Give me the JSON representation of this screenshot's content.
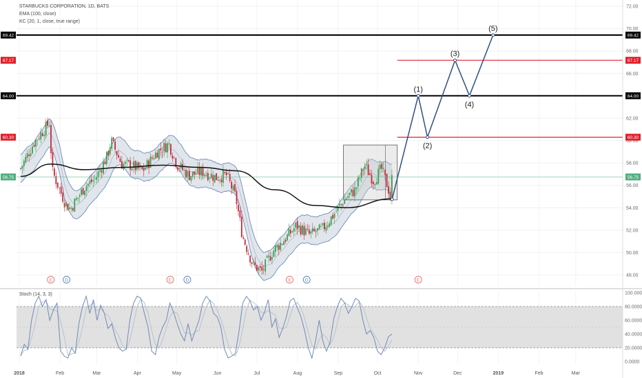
{
  "legend": {
    "symbol": "STARBUCKS CORPORATION, 1D, BATS",
    "ema": "EMA (100, close)",
    "kc": "KC (20, 1, close, true range)",
    "stoch": "Stoch (14, 3, 3)"
  },
  "colors": {
    "up": "#3c9d4e",
    "down": "#c2293a",
    "ema": "#111111",
    "kc_line": "#6f8ab8",
    "kc_fill": "#c9d2dd",
    "black_level": "#000000",
    "red_level": "#e0202a",
    "current_price": "#4fae7e",
    "stoch_k": "#6f8ab8",
    "stoch_d": "#b7c2cf",
    "stoch_band": "#d9d9d9",
    "event_e": "#e07070",
    "event_d": "#5b7fb0"
  },
  "chart_data": [
    {
      "type": "candlestick",
      "title": "STARBUCKS CORPORATION, 1D, BATS",
      "y_range": [
        47,
        72
      ],
      "y_ticks": [
        "48.00",
        "50.00",
        "52.00",
        "54.00",
        "56.00",
        "58.00",
        "60.00",
        "62.00",
        "64.00",
        "66.00",
        "68.00",
        "70.00",
        "72.00"
      ],
      "x_labels": [
        "2018",
        "Feb",
        "Mar",
        "Apr",
        "May",
        "Jun",
        "Jul",
        "Aug",
        "Sep",
        "Oct",
        "Nov",
        "Dec",
        "2019",
        "Feb",
        "Mar"
      ],
      "price_series": [
        {
          "date": "2018-01-02",
          "close": 57.5
        },
        {
          "date": "2018-01-12",
          "close": 59.8
        },
        {
          "date": "2018-01-24",
          "close": 61.6
        },
        {
          "date": "2018-01-26",
          "close": 57.3
        },
        {
          "date": "2018-02-05",
          "close": 54.4
        },
        {
          "date": "2018-02-09",
          "close": 53.9
        },
        {
          "date": "2018-02-20",
          "close": 55.9
        },
        {
          "date": "2018-02-28",
          "close": 56.6
        },
        {
          "date": "2018-03-09",
          "close": 58.6
        },
        {
          "date": "2018-03-12",
          "close": 60.0
        },
        {
          "date": "2018-03-20",
          "close": 57.9
        },
        {
          "date": "2018-03-27",
          "close": 57.8
        },
        {
          "date": "2018-04-05",
          "close": 57.3
        },
        {
          "date": "2018-04-16",
          "close": 59.0
        },
        {
          "date": "2018-04-25",
          "close": 59.7
        },
        {
          "date": "2018-05-01",
          "close": 57.9
        },
        {
          "date": "2018-05-10",
          "close": 56.9
        },
        {
          "date": "2018-05-21",
          "close": 57.2
        },
        {
          "date": "2018-05-31",
          "close": 56.7
        },
        {
          "date": "2018-06-08",
          "close": 56.9
        },
        {
          "date": "2018-06-15",
          "close": 54.9
        },
        {
          "date": "2018-06-20",
          "close": 51.5
        },
        {
          "date": "2018-06-28",
          "close": 48.9
        },
        {
          "date": "2018-07-05",
          "close": 48.3
        },
        {
          "date": "2018-07-13",
          "close": 50.1
        },
        {
          "date": "2018-07-24",
          "close": 51.4
        },
        {
          "date": "2018-07-31",
          "close": 52.4
        },
        {
          "date": "2018-08-10",
          "close": 51.6
        },
        {
          "date": "2018-08-20",
          "close": 52.1
        },
        {
          "date": "2018-08-28",
          "close": 53.3
        },
        {
          "date": "2018-09-07",
          "close": 54.9
        },
        {
          "date": "2018-09-14",
          "close": 55.6
        },
        {
          "date": "2018-09-21",
          "close": 57.8
        },
        {
          "date": "2018-09-28",
          "close": 56.4
        },
        {
          "date": "2018-10-04",
          "close": 57.5
        },
        {
          "date": "2018-10-09",
          "close": 55.8
        },
        {
          "date": "2018-10-11",
          "close": 54.7
        },
        {
          "date": "2018-10-12",
          "close": 56.8
        }
      ],
      "ema_100": [
        {
          "date": "2018-01-02",
          "value": 56.8
        },
        {
          "date": "2018-01-25",
          "value": 57.9
        },
        {
          "date": "2018-02-20",
          "value": 57.4
        },
        {
          "date": "2018-03-20",
          "value": 57.6
        },
        {
          "date": "2018-04-20",
          "value": 57.8
        },
        {
          "date": "2018-05-20",
          "value": 57.6
        },
        {
          "date": "2018-06-15",
          "value": 57.3
        },
        {
          "date": "2018-07-15",
          "value": 55.6
        },
        {
          "date": "2018-08-15",
          "value": 54.2
        },
        {
          "date": "2018-09-07",
          "value": 54.0
        },
        {
          "date": "2018-10-12",
          "value": 54.8
        }
      ],
      "levels": [
        {
          "name": "level-69-42",
          "value": 69.42,
          "label": "69.42",
          "color": "#000000",
          "style": "thick"
        },
        {
          "name": "level-67-17",
          "value": 67.17,
          "label": "67.17",
          "color": "#e0202a",
          "style": "thin"
        },
        {
          "name": "level-64-00",
          "value": 64.0,
          "label": "64.00",
          "color": "#000000",
          "style": "thick"
        },
        {
          "name": "level-60-30",
          "value": 60.3,
          "label": "60.30",
          "color": "#e0202a",
          "style": "thin"
        }
      ],
      "current_price": {
        "value": 56.75,
        "label": "56.75"
      },
      "elliott_wave": [
        {
          "label": "",
          "date": "2018-10-12",
          "value": 54.75
        },
        {
          "label": "(1)",
          "date": "2018-11-01",
          "value": 64.0
        },
        {
          "label": "(2)",
          "date": "2018-11-08",
          "value": 60.3
        },
        {
          "label": "(3)",
          "date": "2018-11-29",
          "value": 67.17
        },
        {
          "label": "(4)",
          "date": "2018-12-10",
          "value": 64.0
        },
        {
          "label": "(5)",
          "date": "2018-12-28",
          "value": 69.42
        }
      ],
      "events": [
        {
          "type": "E",
          "date": "2018-01-25"
        },
        {
          "type": "D",
          "date": "2018-02-06"
        },
        {
          "type": "E",
          "date": "2018-04-26"
        },
        {
          "type": "D",
          "date": "2018-05-09"
        },
        {
          "type": "E",
          "date": "2018-07-26"
        },
        {
          "type": "D",
          "date": "2018-08-08"
        },
        {
          "type": "E",
          "date": "2018-11-01"
        }
      ],
      "range_box": {
        "date_start": "2018-09-05",
        "date_end": "2018-10-16",
        "value_low": 54.7,
        "value_high": 59.6
      }
    },
    {
      "type": "line",
      "title": "Stoch (14, 3, 3)",
      "y_range": [
        0,
        100
      ],
      "y_ticks": [
        "0.0000",
        "20.0000",
        "40.0000",
        "60.0000",
        "80.0000",
        "100.0000"
      ],
      "band": [
        20,
        80
      ],
      "series": [
        {
          "name": "",
          "values": [
            8,
            25,
            18,
            60,
            85,
            95,
            80,
            90,
            60,
            75,
            85,
            15,
            8,
            5,
            20,
            12,
            55,
            80,
            95,
            70,
            90,
            60,
            82,
            70,
            48,
            55,
            35,
            20,
            15,
            18,
            60,
            85,
            95,
            92,
            70,
            50,
            15,
            10,
            35,
            50,
            60,
            85,
            72,
            55,
            40,
            30,
            55,
            30,
            45,
            60,
            85,
            95,
            88,
            70,
            65,
            50,
            18,
            5,
            8,
            12,
            45,
            85,
            95,
            88,
            75,
            80,
            60,
            72,
            90,
            50,
            62,
            35,
            48,
            65,
            88,
            92,
            78,
            65,
            45,
            20,
            5,
            30,
            60,
            30,
            15,
            28,
            62,
            80,
            92,
            85,
            70,
            80,
            92,
            88,
            60,
            40,
            45,
            35,
            15,
            10,
            20,
            36,
            40
          ]
        }
      ]
    }
  ]
}
